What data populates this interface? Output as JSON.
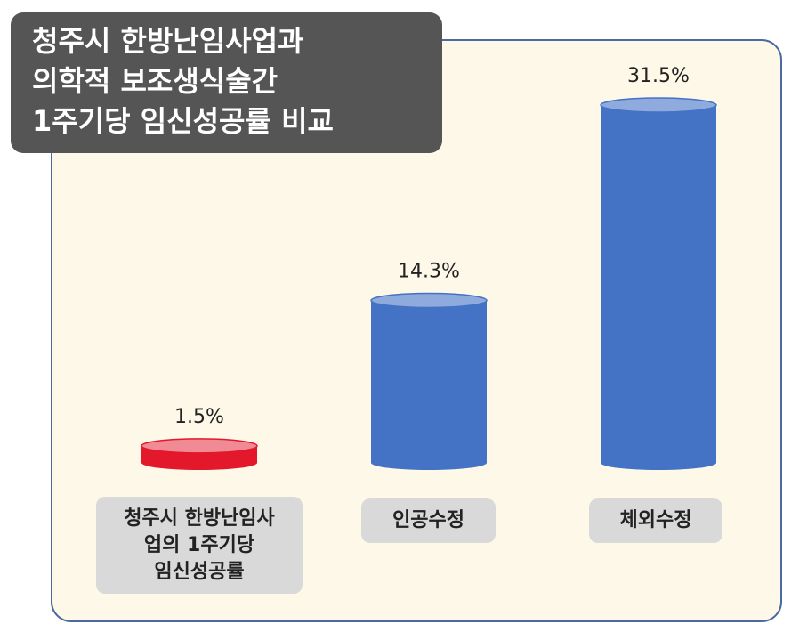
{
  "chart_data": {
    "type": "cylinder_bar",
    "title": "청주시 한방난임사업과\n의학적 보조생식술간\n1주기당 임신성공률 비교",
    "categories": [
      "청주시 한방난임사\n업의 1주기당\n임신성공률",
      "인공수정",
      "체외수정"
    ],
    "values": [
      1.5,
      14.3,
      31.5
    ],
    "value_labels": [
      "1.5%",
      "14.3%",
      "31.5%"
    ],
    "colors": [
      "#e3182b",
      "#4472c4",
      "#4472c4"
    ],
    "top_colors": [
      "#f08a94",
      "#8faadc",
      "#8faadc"
    ]
  }
}
